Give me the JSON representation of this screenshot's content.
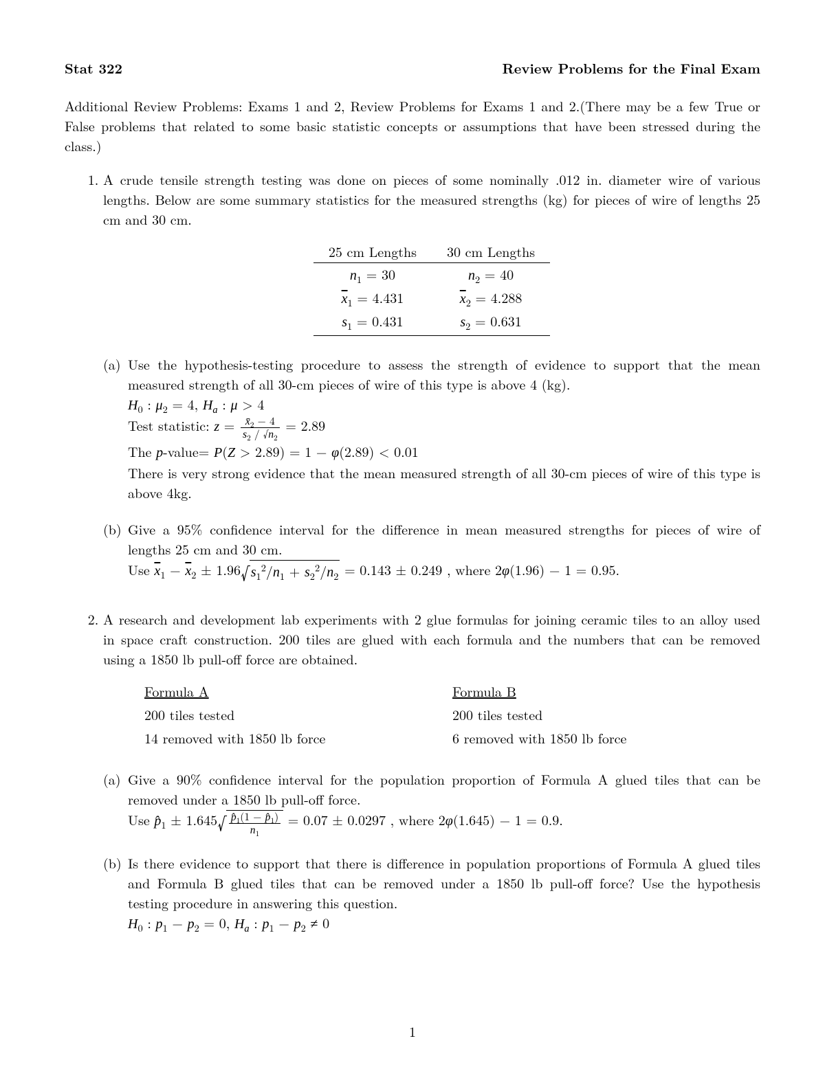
{
  "header": {
    "left": "Stat 322",
    "right": "Review Problems for the Final Exam"
  },
  "intro": "Additional Review Problems: Exams 1 and 2, Review Problems for Exams 1 and 2.(There may be a few True or False problems that related to some basic statistic concepts or assumptions that have been stressed during the class.)",
  "q1": {
    "body": "A crude tensile strength testing was done on pieces of some nominally .012 in. diameter wire of various lengths. Below are some summary statistics for the measured strengths (kg) for pieces of wire of lengths 25 cm and 30 cm.",
    "table": {
      "headers": [
        "25 cm Lengths",
        "30 cm Lengths"
      ],
      "rows": [
        {
          "l1": "n",
          "s1": "1",
          "e1": " = 30",
          "l2": "n",
          "s2": "2",
          "e2": " = 40"
        },
        {
          "l1": "x̄",
          "s1": "1",
          "e1": " = 4.431",
          "l2": "x̄",
          "s2": "2",
          "e2": " = 4.288",
          "bar": true
        },
        {
          "l1": "s",
          "s1": "1",
          "e1": " = 0.431",
          "l2": "s",
          "s2": "2",
          "e2": " = 0.631"
        }
      ]
    },
    "a": {
      "label": "(a)",
      "text": "Use the hypothesis-testing procedure to assess the strength of evidence to support that the mean measured strength of all 30-cm pieces of wire of this type is above 4 (kg).",
      "h0": "H",
      "mu": "μ",
      "hyp_pre": " : ",
      "mu2_eq4": " = 4, ",
      "ha": "H",
      "mu_gt4": " > 4",
      "ts_label": "Test statistic: ",
      "z_eq": "z = ",
      "frac_num": "x̄₂ − 4",
      "frac_den": "s₂ / √n₂",
      "ts_val": " = 2.89",
      "pval_label": "The ",
      "p_lit": "p",
      "pval_rest": "-value= ",
      "pval_expr": "P(Z > 2.89) = 1 − φ(2.89) < 0.01",
      "concl": "There is very strong evidence that the mean measured strength of all 30-cm pieces of wire of this type is above 4kg."
    },
    "b": {
      "label": "(b)",
      "text": "Give a 95% confidence interval for the difference in mean measured strengths for pieces of wire of lengths 25 cm and 30 cm.",
      "use": "Use ",
      "xbar1": "x̄",
      "minus": " − ",
      "xbar2": "x̄",
      "pm": " ± 1.96",
      "sqrt_inner_a": "s",
      "sqrt_inner_b": "/n",
      "plus": " + ",
      "val": " = 0.143 ± 0.249 , where 2φ(1.96) − 1 = 0.95."
    }
  },
  "q2": {
    "body": "A research and development lab experiments with 2 glue formulas for joining ceramic tiles to an alloy used in space craft construction. 200 tiles are glued with each formula and the numbers that can be removed using a 1850 lb pull-off force are obtained.",
    "cols": {
      "a_head": "Formula A",
      "a_l1": "200 tiles tested",
      "a_l2": " 14 removed with 1850 lb force",
      "b_head": "Formula B",
      "b_l1": "200 tiles tested",
      "b_l2": "  6 removed with 1850 lb force"
    },
    "a": {
      "label": "(a)",
      "text": "Give a 90% confidence interval for the population proportion of Formula A glued tiles that can be removed under a 1850 lb pull-off force.",
      "use": "Use ",
      "phat": "p̂",
      "pm": " ± 1.645",
      "frac_num": "p̂₁(1 − p̂₁)",
      "frac_den": "n₁",
      "val": " = 0.07 ± 0.0297 , where 2φ(1.645) − 1 = 0.9."
    },
    "b": {
      "label": "(b)",
      "text": "Is there evidence to support that there is difference in population proportions of Formula A glued tiles and Formula B glued tiles that can be removed under a 1850 lb pull-off force? Use the hypothesis testing procedure in answering this question.",
      "h0_pre": "H",
      "p_lit": "p",
      "eq0": " = 0, ",
      "ha_pre": "H",
      "ne0": " ≠ 0"
    }
  },
  "pagenum": "1"
}
